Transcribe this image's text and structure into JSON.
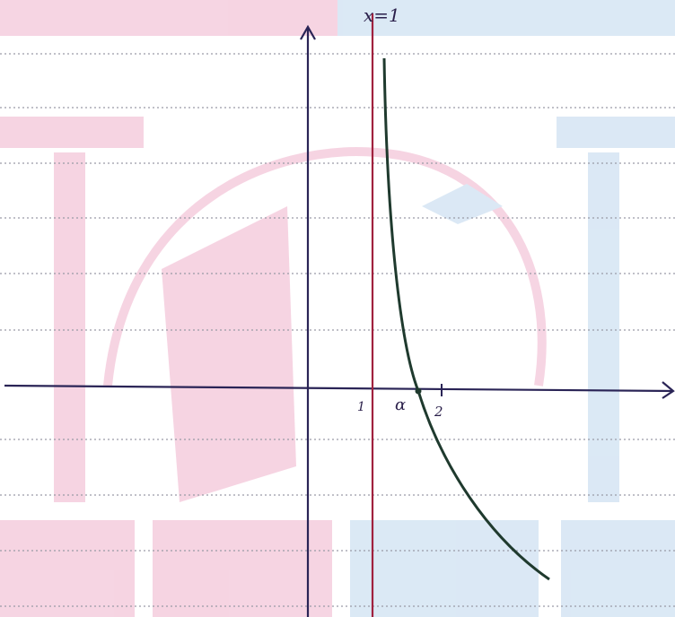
{
  "asymptote_label": "x=1",
  "axis_labels": {
    "one": "1",
    "alpha": "α",
    "two": "2"
  }
}
